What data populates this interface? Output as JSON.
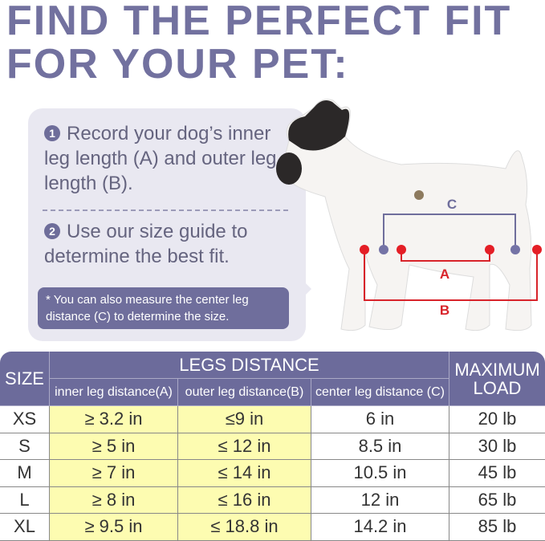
{
  "title": {
    "line1": "FIND THE PERFECT FIT",
    "line2": "FOR YOUR PET:"
  },
  "instructions": {
    "step1_num": "1",
    "step1": "Record your dog’s inner leg length (A) and outer leg length (B).",
    "step2_num": "2",
    "step2": "Use our size guide to determine the best fit.",
    "note": "* You can also measure the center leg distance (C) to determine the size."
  },
  "diagram": {
    "label_a": "A",
    "label_b": "B",
    "label_c": "C",
    "colors": {
      "ab": "#d8232a",
      "c": "#6f6e9c"
    }
  },
  "table": {
    "size_header": "SIZE",
    "legs_header": "LEGS DISTANCE",
    "load_header": "MAXIMUM LOAD",
    "sub_headers": [
      "inner leg distance(A)",
      "outer leg distance(B)",
      "center leg distance (C)"
    ],
    "rows": [
      [
        "XS",
        "≥ 3.2 in",
        "≤9 in",
        "6 in",
        "20 lb"
      ],
      [
        "S",
        "≥ 5 in",
        "≤ 12 in",
        "8.5 in",
        "30 lb"
      ],
      [
        "M",
        "≥ 7 in",
        "≤ 14 in",
        "10.5 in",
        "45 lb"
      ],
      [
        "L",
        "≥ 8 in",
        "≤ 16 in",
        "12 in",
        "65 lb"
      ],
      [
        "XL",
        "≥ 9.5 in",
        "≤ 18.8 in",
        "14.2 in",
        "85 lb"
      ]
    ]
  },
  "colors": {
    "accent": "#6c6b9b",
    "highlight": "#fdfcb1",
    "bubble": "#e9e8f1"
  }
}
